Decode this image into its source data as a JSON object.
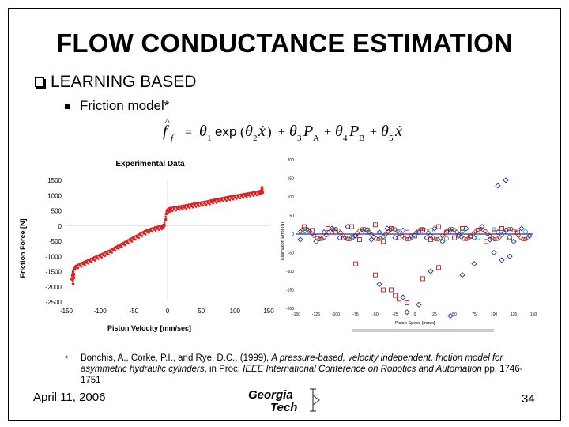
{
  "slide": {
    "title": "FLOW CONDUCTANCE ESTIMATION",
    "bullet1": "LEARNING BASED",
    "bullet2": "Friction model*",
    "equation": {
      "f_hat": "f",
      "f_sub": "f",
      "theta": "θ",
      "sub1": "1",
      "exp": "exp",
      "sub2": "2",
      "sub3": "3",
      "pa": "P",
      "pa_sub": "A",
      "sub4": "4",
      "pb": "P",
      "pb_sub": "B",
      "sub5": "5",
      "xdot": "ẋ"
    },
    "footnote_marker": "*",
    "footnote_plain": "Bonchis, A., Corke, P.I., and Rye, D.C., (1999), ",
    "footnote_italic": "A pressure-based, velocity independent, friction model for asymmetric hydraulic cylinders",
    "footnote_tail": ", in Proc: ",
    "footnote_conf": "IEEE International Conference on Robotics and Automation",
    "footnote_pages": " pp. 1746-1751",
    "date": "April 11, 2006",
    "page_number": "34",
    "logo_top": "Georgia",
    "logo_bottom": "Tech"
  },
  "chart_data": [
    {
      "type": "scatter",
      "title": "Experimental Data",
      "xlabel": "Piston Velocity [mm/sec]",
      "ylabel": "Friction Force [N]",
      "xlim": [
        -150,
        150
      ],
      "ylim": [
        -2500,
        1500
      ],
      "xticks": [
        "-150",
        "-100",
        "-50",
        "0",
        "50",
        "100",
        "150"
      ],
      "yticks": [
        "1500",
        "1000",
        "500",
        "0",
        "-500",
        "-1000",
        "-1500",
        "-2000",
        "-2500"
      ],
      "grid": false,
      "colors": {
        "points": "#e02020"
      },
      "series": [
        {
          "x": [
            -142,
            -141,
            -140,
            -140,
            -139,
            -138,
            -135,
            -130,
            -125,
            -120,
            -115,
            -110,
            -105,
            -100,
            -95,
            -90,
            -85,
            -80,
            -75,
            -70,
            -65,
            -60,
            -55,
            -50,
            -45,
            -40,
            -35,
            -30,
            -25,
            -20,
            -15,
            -10,
            -7,
            -5,
            -3,
            -2,
            0,
            2,
            3,
            5,
            10,
            15,
            20,
            25,
            30,
            35,
            40,
            45,
            50,
            55,
            60,
            65,
            70,
            75,
            80,
            85,
            90,
            95,
            100,
            105,
            110,
            115,
            120,
            125,
            130,
            135,
            138,
            140,
            140,
            141
          ],
          "y": [
            -1750,
            -1600,
            -1900,
            -1500,
            -1700,
            -1400,
            -1350,
            -1300,
            -1250,
            -1200,
            -1150,
            -1100,
            -1050,
            -1000,
            -950,
            -900,
            -850,
            -780,
            -720,
            -660,
            -600,
            -540,
            -480,
            -420,
            -360,
            -300,
            -240,
            -190,
            -150,
            -110,
            -80,
            -60,
            -30,
            0,
            200,
            400,
            500,
            520,
            530,
            540,
            560,
            580,
            600,
            620,
            640,
            660,
            680,
            700,
            720,
            740,
            760,
            790,
            810,
            830,
            860,
            880,
            900,
            920,
            940,
            960,
            980,
            1000,
            1020,
            1040,
            1060,
            1080,
            1100,
            1150,
            1250,
            1100
          ]
        }
      ]
    },
    {
      "type": "scatter",
      "xlabel": "Piston Speed [mm/s]",
      "ylabel": "Estimation Error [N]",
      "xlim": [
        -150,
        150
      ],
      "ylim": [
        -200,
        200
      ],
      "xticks": [
        "-150",
        "-125",
        "-100",
        "-75",
        "-50",
        "-25",
        "0",
        "25",
        "50",
        "75",
        "100",
        "125",
        "150"
      ],
      "yticks": [
        "200",
        "150",
        "100",
        "50",
        "0",
        "-50",
        "-100",
        "-150",
        "-200"
      ],
      "colors": {
        "squares": "#c02020",
        "diamonds": "#2030b0",
        "circles": "#20a0a0",
        "line": "#8b1a1a"
      },
      "series": [
        {
          "name": "squares",
          "x": [
            -140,
            -130,
            -120,
            -110,
            -100,
            -90,
            -80,
            -70,
            -60,
            -50,
            -40,
            -30,
            -20,
            -10,
            0,
            10,
            20,
            30,
            40,
            50,
            60,
            70,
            80,
            90,
            100,
            110,
            120,
            130,
            -75,
            -50,
            -30,
            -20,
            -10,
            10,
            30,
            -40,
            -25
          ],
          "y": [
            20,
            10,
            -5,
            15,
            5,
            -10,
            20,
            -15,
            10,
            25,
            -20,
            15,
            -10,
            5,
            -5,
            10,
            -15,
            20,
            5,
            -10,
            15,
            -5,
            10,
            -20,
            5,
            15,
            -10,
            5,
            -80,
            -110,
            -150,
            -175,
            -185,
            -120,
            -90,
            -150,
            -165
          ]
        },
        {
          "name": "diamonds",
          "x": [
            -145,
            -135,
            -125,
            -115,
            -105,
            -95,
            -85,
            -75,
            -65,
            -55,
            -45,
            -35,
            -25,
            -15,
            -5,
            5,
            15,
            25,
            35,
            45,
            55,
            65,
            75,
            85,
            95,
            105,
            115,
            125,
            135,
            145,
            -45,
            -15,
            -10,
            5,
            20,
            45,
            60,
            75,
            100,
            110,
            120,
            115,
            105
          ],
          "y": [
            -15,
            10,
            -20,
            5,
            15,
            -10,
            20,
            -5,
            10,
            -15,
            5,
            15,
            -10,
            10,
            -5,
            5,
            -10,
            15,
            -20,
            10,
            -5,
            15,
            -10,
            20,
            -15,
            5,
            10,
            -20,
            15,
            -5,
            -135,
            -170,
            -210,
            -190,
            -100,
            -220,
            -110,
            -80,
            -50,
            -70,
            -60,
            145,
            130
          ]
        },
        {
          "name": "circles",
          "x": [
            -140,
            -120,
            -100,
            -80,
            -60,
            -40,
            -20,
            0,
            20,
            40,
            60,
            80,
            100,
            120,
            140
          ],
          "y": [
            8,
            -12,
            10,
            -8,
            12,
            -10,
            6,
            -6,
            10,
            -12,
            8,
            -10,
            12,
            -8,
            6
          ]
        }
      ]
    }
  ]
}
